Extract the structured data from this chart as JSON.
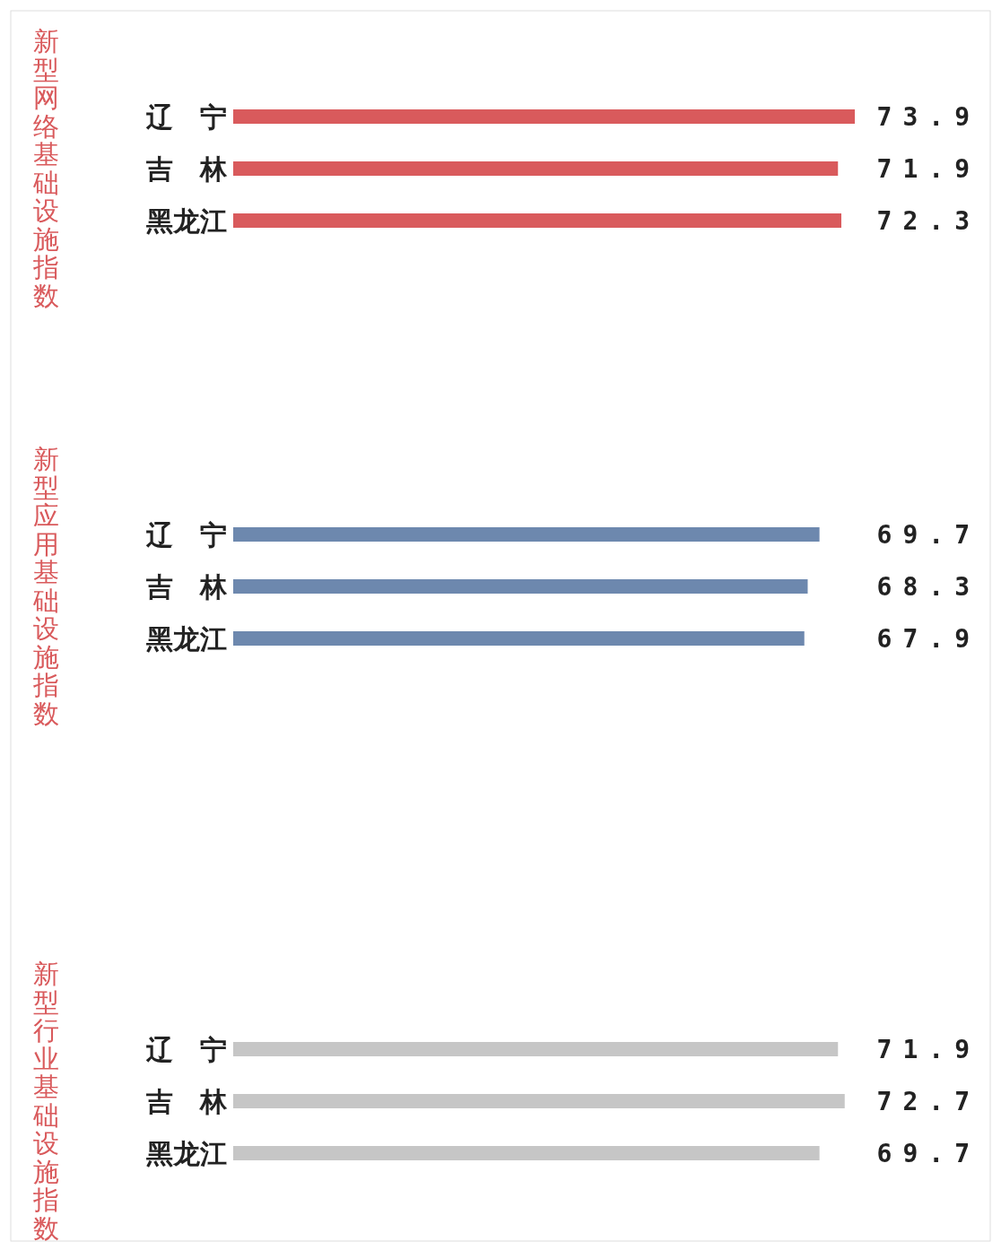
{
  "chart_data": [
    {
      "type": "bar",
      "orientation": "horizontal",
      "title": "新型网络基础设施指数",
      "categories": [
        "辽　宁",
        "吉　林",
        "黑龙江"
      ],
      "values": [
        73.9,
        71.9,
        72.3
      ],
      "color": "#d95a5c",
      "data_labels": true
    },
    {
      "type": "bar",
      "orientation": "horizontal",
      "title": "新型应用基础设施指数",
      "categories": [
        "辽　宁",
        "吉　林",
        "黑龙江"
      ],
      "values": [
        69.7,
        68.3,
        67.9
      ],
      "color": "#6d88ae",
      "data_labels": true
    },
    {
      "type": "bar",
      "orientation": "horizontal",
      "title": "新型行业基础设施指数",
      "categories": [
        "辽　宁",
        "吉　林",
        "黑龙江"
      ],
      "values": [
        71.9,
        72.7,
        69.7
      ],
      "color": "#c6c6c6",
      "data_labels": true
    }
  ]
}
